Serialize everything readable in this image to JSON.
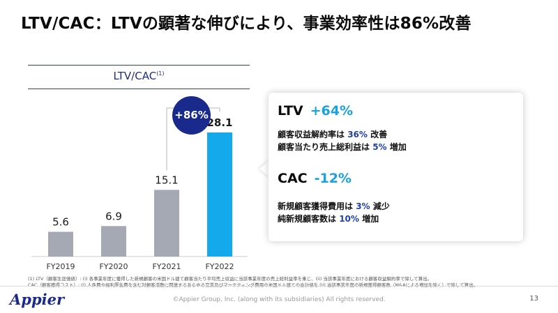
{
  "slide": {
    "title": "LTV/CAC：LTVの顕著な伸びにより、事業効率性は86%改善",
    "page_number": "13",
    "copyright": "©Appier Group, Inc. (along with its subsidiaries) All rights reserved.",
    "logo_text": "Appier"
  },
  "chart_header": {
    "label": "LTV/CAC",
    "footnote_mark": "(1)"
  },
  "badge": {
    "label": "+86%"
  },
  "colors": {
    "bar_gray": "#a5a9b3",
    "bar_highlight": "#14a9ea",
    "navy": "#1a2a8c",
    "accent_blue": "#1aa1e0"
  },
  "chart_data": {
    "type": "bar",
    "categories": [
      "FY2019",
      "FY2020",
      "FY2021",
      "FY2022"
    ],
    "values": [
      5.6,
      6.9,
      15.1,
      28.1
    ],
    "value_labels": [
      "5.6",
      "6.9",
      "15.1",
      "28.1"
    ],
    "highlight_index": 3,
    "title": "LTV/CAC",
    "ylim": [
      0,
      30
    ],
    "grid": false,
    "annotation": "+86%"
  },
  "card": {
    "ltv": {
      "name": "LTV",
      "change": "+64%",
      "line1_pre": "顧客収益解約率は ",
      "line1_val": "36%",
      "line1_post": " 改善",
      "line2_pre": "顧客当たり売上総利益は ",
      "line2_val": "5%",
      "line2_post": " 増加"
    },
    "cac": {
      "name": "CAC",
      "change": "-12%",
      "line1_pre": "新規顧客獲得費用は ",
      "line1_val": "3%",
      "line1_post": " 減少",
      "line2_pre": "純新規顧客数は ",
      "line2_val": "10%",
      "line2_post": " 増加"
    }
  },
  "footnotes": [
    "(1) LTV（顧客生涯価値）: (i) 各事業年度に獲得した新規顧客の米国ドル建て顧客当たり平均売上収益に当該事業年度の売上総利益率を乗じ、(ii) 当該事業年度における顧客収益解約率で除して算出。",
    "CAC（顧客獲得コスト）: (i) 人件費や福利厚生費を含む対顧客活動に関連するあらゆる営業及びマーケティング費用の米国ドル建ての合計値を (ii) 当該事業年度の新規獲得顧客数（M&Aによる増加を除く）で除して算出。"
  ]
}
